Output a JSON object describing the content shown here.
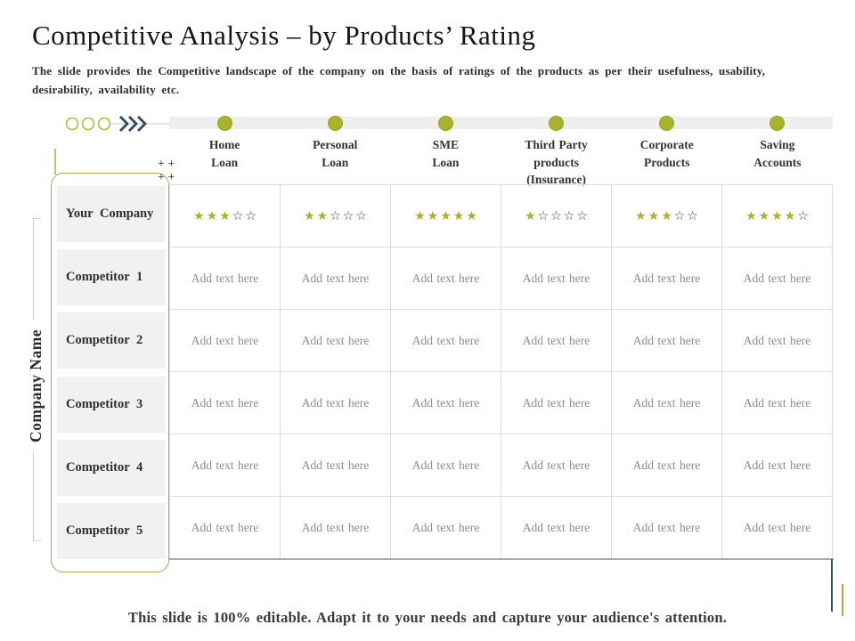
{
  "slide": {
    "title": "Competitive Analysis – by Products’ Rating",
    "subtitle": "The slide provides the Competitive landscape of the company on the basis of ratings of the products as per their usefulness, usability, desirability, availability etc.",
    "footer": "This slide is 100% editable. Adapt it to your needs and capture your audience's attention."
  },
  "axis": {
    "company_label": "Company Name"
  },
  "columns": [
    "Home\nLoan",
    "Personal\nLoan",
    "SME\nLoan",
    "Third Party\nproducts\n(Insurance)",
    "Corporate\nProducts",
    "Saving\nAccounts"
  ],
  "rating_max": 5,
  "rows": [
    {
      "label": "Your Company",
      "type": "rating",
      "ratings": [
        3,
        2,
        5,
        1,
        3,
        4
      ]
    },
    {
      "label": "Competitor 1",
      "type": "text",
      "cells": [
        "Add text here",
        "Add text here",
        "Add text here",
        "Add text here",
        "Add text here",
        "Add text here"
      ]
    },
    {
      "label": "Competitor 2",
      "type": "text",
      "cells": [
        "Add text here",
        "Add text here",
        "Add text here",
        "Add text here",
        "Add text here",
        "Add text here"
      ]
    },
    {
      "label": "Competitor 3",
      "type": "text",
      "cells": [
        "Add text here",
        "Add text here",
        "Add text here",
        "Add text here",
        "Add text here",
        "Add text here"
      ]
    },
    {
      "label": "Competitor 4",
      "type": "text",
      "cells": [
        "Add text here",
        "Add text here",
        "Add text here",
        "Add text here",
        "Add text here",
        "Add text here"
      ]
    },
    {
      "label": "Competitor 5",
      "type": "text",
      "cells": [
        "Add text here",
        "Add text here",
        "Add text here",
        "Add text here",
        "Add text here",
        "Add text here"
      ]
    }
  ],
  "icons": {
    "star_filled": "★",
    "star_empty": "☆",
    "plus_marks": "+ +\n+ +",
    "progress_circles": "circle-circle-circle",
    "chevrons": "»»»"
  },
  "colors": {
    "olive": "#a9b22b",
    "gold": "#b7a845",
    "navy": "#2d4b61",
    "grid": "#dcdcdc",
    "cellbg": "#f1f1ef",
    "bar": "#efefef",
    "placeholder": "#8c8c8c"
  }
}
